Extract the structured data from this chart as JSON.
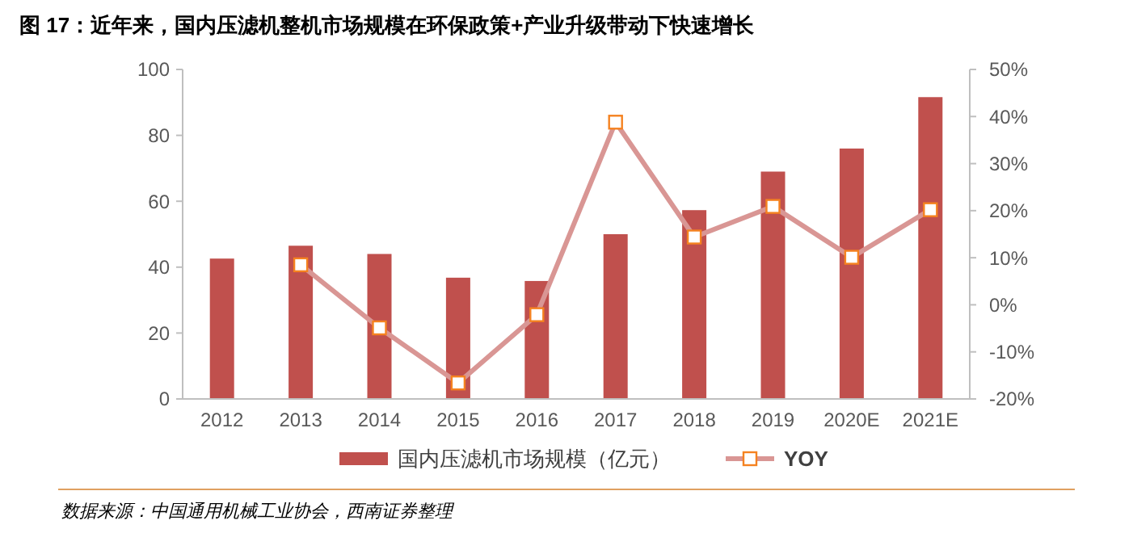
{
  "chart_data": {
    "type": "bar",
    "title": "图 17：近年来，国内压滤机整机市场规模在环保政策+产业升级带动下快速增长",
    "categories": [
      "2012",
      "2013",
      "2014",
      "2015",
      "2016",
      "2017",
      "2018",
      "2019",
      "2020E",
      "2021E"
    ],
    "series": [
      {
        "name": "国内压滤机市场规模（亿元）",
        "color": "#c0504d",
        "values": [
          42.6,
          46.5,
          44,
          36.8,
          35.8,
          50,
          57.3,
          69,
          76,
          91.6
        ]
      },
      {
        "name": "YOY",
        "type": "line",
        "axis": "y2",
        "color": "#d99694",
        "marker": "square",
        "values": [
          null,
          8.5,
          -4.9,
          -16.6,
          -2.1,
          38.8,
          14.4,
          20.9,
          10.1,
          20.2
        ]
      }
    ],
    "ylim": [
      0,
      100
    ],
    "yticks": [
      0,
      20,
      40,
      60,
      80,
      100
    ],
    "y2lim": [
      -20,
      50
    ],
    "y2ticks": [
      {
        "value": -20,
        "label": "-20%"
      },
      {
        "value": -10,
        "label": "-10%"
      },
      {
        "value": 0,
        "label": "0%"
      },
      {
        "value": 10,
        "label": "10%"
      },
      {
        "value": 20,
        "label": "20%"
      },
      {
        "value": 30,
        "label": "30%"
      },
      {
        "value": 40,
        "label": "40%"
      },
      {
        "value": 50,
        "label": "50%"
      }
    ],
    "grid": false,
    "legend": "bottom",
    "annotations": [
      "数据来源：中国通用机械工业协会，西南证券整理"
    ]
  }
}
